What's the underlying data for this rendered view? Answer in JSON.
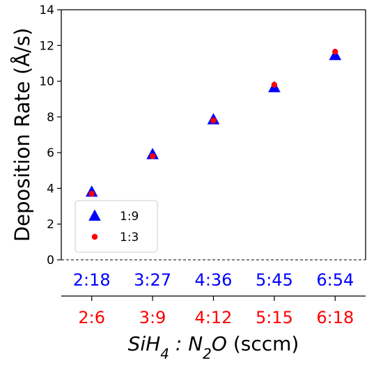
{
  "chart_data": {
    "type": "scatter",
    "ylabel": "Deposition Rate (Å/s)",
    "xlabel": {
      "italic_prefix": "SiH",
      "sub1": "4",
      "sep": " : ",
      "italic_mid": "N",
      "sub2": "2",
      "italic_end": "O",
      "unit": " (sccm)"
    },
    "ylim": [
      0,
      14
    ],
    "yticks": [
      0,
      2,
      4,
      6,
      8,
      10,
      12,
      14
    ],
    "xlim": [
      0.5,
      5.5
    ],
    "categories_top": [
      "2:18",
      "3:27",
      "4:36",
      "5:45",
      "6:54"
    ],
    "categories_bottom": [
      "2:6",
      "3:9",
      "4:12",
      "5:15",
      "6:18"
    ],
    "x": [
      1,
      2,
      3,
      4,
      5
    ],
    "series": [
      {
        "name": "1:9",
        "marker": "triangle",
        "color": "#0000ff",
        "values": [
          3.8,
          5.9,
          7.85,
          9.65,
          11.45
        ]
      },
      {
        "name": "1:3",
        "marker": "circle",
        "color": "#ff0000",
        "values": [
          3.7,
          5.8,
          7.8,
          9.8,
          11.65
        ]
      }
    ],
    "legend": {
      "placement": "lower-left"
    },
    "top_category_color": "#0000ff",
    "bottom_category_color": "#ff0000",
    "grid": false,
    "baseline": {
      "value": 0,
      "style": "dashed"
    }
  }
}
